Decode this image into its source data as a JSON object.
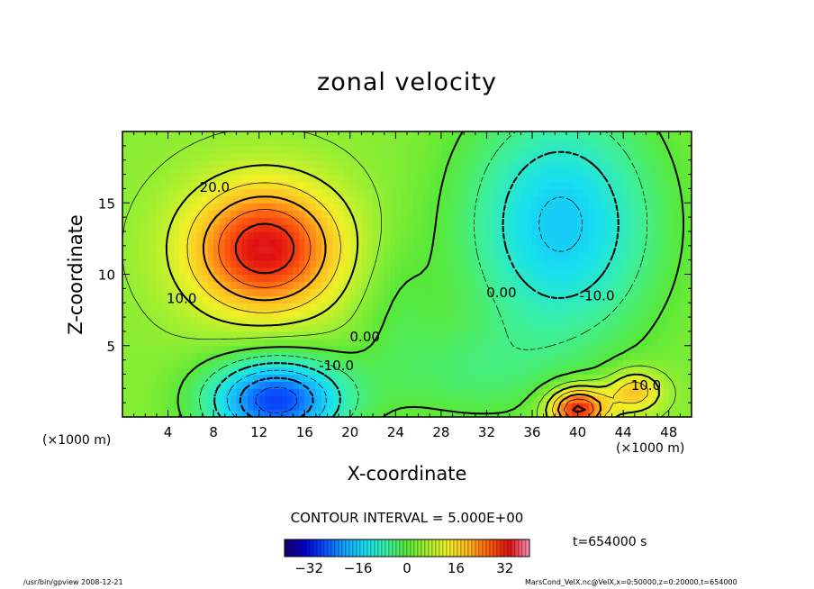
{
  "chart_data": {
    "type": "heatmap",
    "title": "zonal velocity",
    "xlabel": "X-coordinate",
    "ylabel": "Z-coordinate",
    "x_unit": "(×1000 m)",
    "xlim": [
      0,
      50
    ],
    "ylim": [
      0,
      20
    ],
    "x_ticks": [
      4,
      8,
      12,
      16,
      20,
      24,
      28,
      32,
      36,
      40,
      44,
      48
    ],
    "y_ticks": [
      5,
      10,
      15
    ],
    "contour_interval": "CONTOUR INTERVAL = 5.000E+00",
    "contour_labels": [
      {
        "text": "20.0",
        "x": 8.1,
        "z": 16.1
      },
      {
        "text": "10.0",
        "x": 5.2,
        "z": 8.3
      },
      {
        "text": "0.00",
        "x": 21.3,
        "z": 5.6
      },
      {
        "text": "-10.0",
        "x": 18.8,
        "z": 3.6
      },
      {
        "text": "0.00",
        "x": 33.3,
        "z": 8.7
      },
      {
        "text": "-10.0",
        "x": 41.7,
        "z": 8.5
      },
      {
        "text": "10.0",
        "x": 46.0,
        "z": 2.2
      }
    ],
    "features": [
      {
        "kind": "max",
        "x": 12.5,
        "z": 11.5,
        "value": 30
      },
      {
        "kind": "min",
        "x": 13.0,
        "z": 1.5,
        "value": -28
      },
      {
        "kind": "min",
        "x": 39.5,
        "z": 14.5,
        "value": -15
      },
      {
        "kind": "max",
        "x": 40.0,
        "z": 0.8,
        "value": 30
      },
      {
        "kind": "max",
        "x": 45.0,
        "z": 1.8,
        "value": 15
      }
    ],
    "colorbar": {
      "min": -40,
      "max": 40,
      "ticks": [
        -32,
        -16,
        0,
        16,
        32
      ]
    },
    "colormap": [
      "#1a0066",
      "#0000d0",
      "#0a50ff",
      "#14a8ff",
      "#18e0f0",
      "#3cf0a0",
      "#58e838",
      "#a8f030",
      "#f0f028",
      "#ffb820",
      "#ff6010",
      "#e01010",
      "#ff90b8"
    ]
  },
  "annotations": {
    "time": "t=654000 s",
    "footer_left": "/usr/bin/gpview   2008-12-21",
    "footer_right": "MarsCond_VelX.nc@VelX,x=0:50000,z=0:20000,t=654000"
  }
}
